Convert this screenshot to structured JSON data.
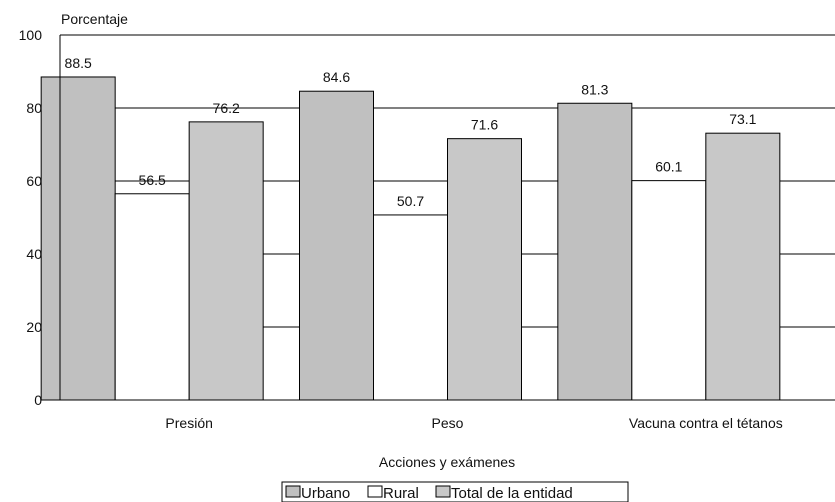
{
  "chart_data": {
    "type": "bar",
    "title": "",
    "xlabel": "Acciones y exámenes",
    "ylabel": "Porcentaje",
    "ylim": [
      0,
      100
    ],
    "yticks": [
      0,
      20,
      40,
      60,
      80,
      100
    ],
    "grid": true,
    "legend_position": "bottom",
    "categories": [
      "Presión",
      "Peso",
      "Vacuna contra el tétanos"
    ],
    "series": [
      {
        "name": "Urbano",
        "values": [
          88.5,
          84.6,
          81.3
        ],
        "color": "#c0c0c0"
      },
      {
        "name": "Rural",
        "values": [
          56.5,
          50.7,
          60.1
        ],
        "color": "#ffffff"
      },
      {
        "name": "Total de la entidad",
        "values": [
          76.2,
          71.6,
          73.1
        ],
        "color": "#c8c8c8"
      }
    ]
  }
}
